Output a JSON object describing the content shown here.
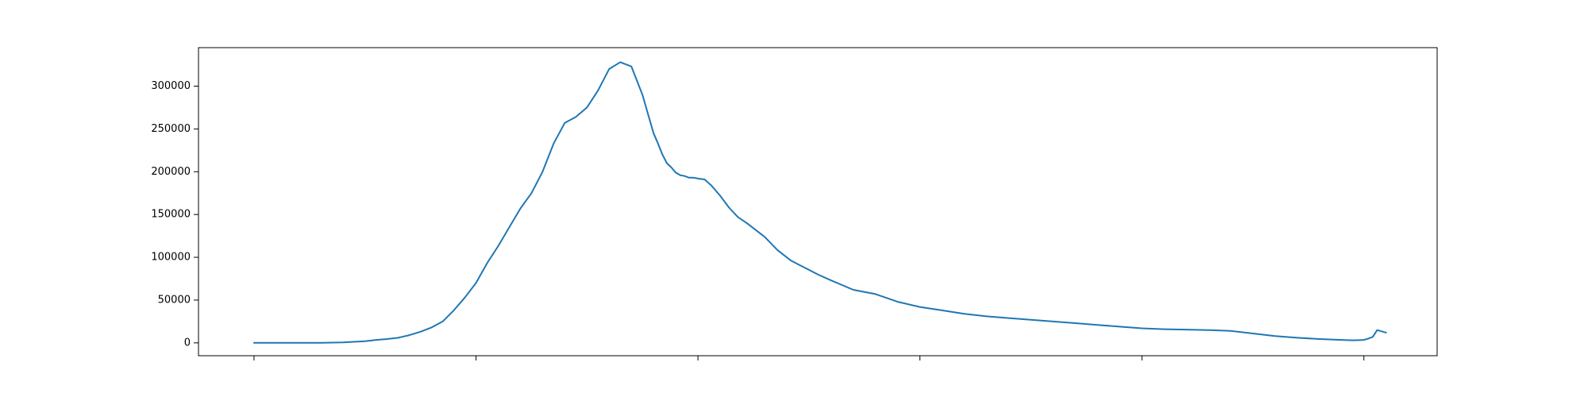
{
  "chart_data": {
    "type": "line",
    "title": "",
    "xlabel": "",
    "ylabel": "",
    "grid": false,
    "ylim": [
      -15000,
      345000
    ],
    "xlim": [
      -25,
      533
    ],
    "x_ticks": [
      0,
      100,
      200,
      300,
      400,
      500
    ],
    "x_tick_labels": [
      "",
      "",
      "",
      "",
      "",
      ""
    ],
    "y_ticks": [
      0,
      50000,
      100000,
      150000,
      200000,
      250000,
      300000
    ],
    "y_tick_labels": [
      "0",
      "50000",
      "100000",
      "150000",
      "200000",
      "250000",
      "300000"
    ],
    "series": [
      {
        "name": "",
        "color": "#1f77b4",
        "x": [
          0,
          10,
          20,
          30,
          40,
          50,
          55,
          60,
          65,
          70,
          75,
          80,
          85,
          90,
          95,
          100,
          105,
          110,
          115,
          120,
          125,
          130,
          135,
          140,
          145,
          150,
          155,
          160,
          165,
          170,
          175,
          180,
          182,
          184,
          186,
          188,
          190,
          192,
          194,
          196,
          198,
          200,
          203,
          206,
          210,
          214,
          218,
          222,
          226,
          230,
          236,
          242,
          248,
          254,
          260,
          270,
          280,
          290,
          300,
          310,
          320,
          330,
          340,
          350,
          360,
          370,
          380,
          390,
          400,
          410,
          420,
          430,
          440,
          450,
          460,
          470,
          480,
          490,
          495,
          500,
          502,
          504,
          506,
          508,
          510
        ],
        "y": [
          0,
          0,
          0,
          0,
          500,
          2000,
          3500,
          4500,
          6000,
          9000,
          13000,
          18000,
          25000,
          38000,
          53000,
          70000,
          93000,
          113000,
          135000,
          157000,
          175000,
          200000,
          233000,
          257000,
          264000,
          275000,
          295000,
          320000,
          328000,
          323000,
          290000,
          245000,
          233000,
          220000,
          210000,
          205000,
          199000,
          196000,
          195000,
          193000,
          193000,
          192000,
          191000,
          184000,
          172000,
          158000,
          147000,
          140000,
          132000,
          124000,
          108000,
          96000,
          88000,
          80000,
          73000,
          62000,
          57000,
          48000,
          42000,
          38000,
          34000,
          31000,
          29000,
          27000,
          25000,
          23000,
          21000,
          19000,
          17000,
          16000,
          15500,
          15000,
          14000,
          11000,
          8000,
          6000,
          4500,
          3500,
          3000,
          3500,
          5000,
          7000,
          15000,
          13500,
          12000
        ]
      }
    ]
  }
}
